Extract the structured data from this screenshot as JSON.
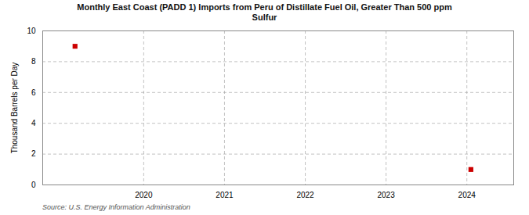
{
  "chart_data": {
    "type": "scatter",
    "title": "Monthly East Coast (PADD 1) Imports from Peru of Distillate Fuel Oil, Greater Than 500 ppm\nSulfur",
    "ylabel": "Thousand Barrels per Day",
    "source": "Source: U.S. Energy Information Administration",
    "x": [
      2019.15,
      2024.05
    ],
    "values": [
      9.0,
      1.0
    ],
    "color": "#cc0000",
    "marker": "square",
    "xlim": [
      2018.75,
      2024.58
    ],
    "ylim": [
      0,
      10
    ],
    "xticks": [
      2020,
      2021,
      2022,
      2023,
      2024
    ],
    "yticks": [
      0,
      2,
      4,
      6,
      8,
      10
    ],
    "grid": true
  }
}
